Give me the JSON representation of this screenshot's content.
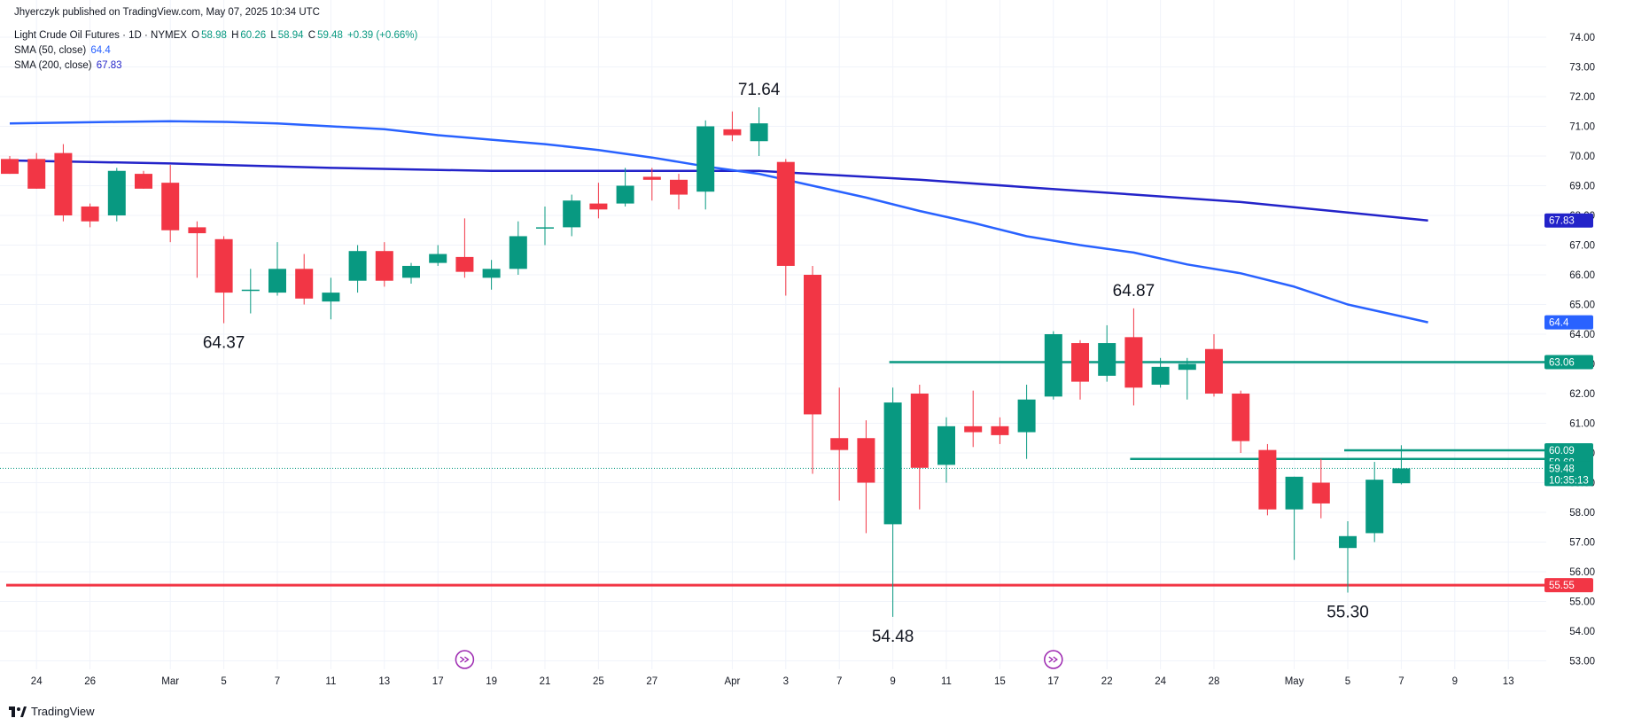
{
  "header": {
    "publisher": "Jhyerczyk published on TradingView.com, May 07, 2025 10:34 UTC",
    "symbol": "Light Crude Oil Futures · 1D · NYMEX",
    "open_label": "O",
    "open": "58.98",
    "high_label": "H",
    "high": "60.26",
    "low_label": "L",
    "low": "58.94",
    "close_label": "C",
    "close": "59.48",
    "change": "+0.39 (+0.66%)",
    "sma50_label": "SMA (50, close)",
    "sma50_value": "64.4",
    "sma200_label": "SMA (200, close)",
    "sma200_value": "67.83"
  },
  "footer": {
    "brand": "TradingView",
    "logo_icon": "tradingview-logo-icon"
  },
  "colors": {
    "up": "#089981",
    "down": "#f23645",
    "sma50": "#2962ff",
    "sma200": "#2323c9",
    "level_line": "#089981",
    "support_line": "#f23645",
    "grid": "#f0f3fa",
    "text": "#131722"
  },
  "chart_data": {
    "type": "candlestick",
    "title": "Light Crude Oil Futures · 1D · NYMEX",
    "ylim": [
      52.5,
      74.5
    ],
    "y_ticks": [
      "74.00",
      "73.00",
      "72.00",
      "71.00",
      "70.00",
      "69.00",
      "68.00",
      "67.00",
      "66.00",
      "65.00",
      "64.00",
      "63.00",
      "62.00",
      "61.00",
      "60.00",
      "59.00",
      "58.00",
      "57.00",
      "56.00",
      "55.00",
      "54.00",
      "53.00"
    ],
    "x_labels": [
      "24",
      "26",
      "Mar",
      "5",
      "7",
      "11",
      "13",
      "17",
      "19",
      "21",
      "25",
      "27",
      "Apr",
      "3",
      "7",
      "9",
      "11",
      "15",
      "17",
      "22",
      "24",
      "28",
      "May",
      "5",
      "7",
      "9",
      "13"
    ],
    "x_label_slots": [
      1,
      3,
      6,
      8,
      10,
      12,
      14,
      16,
      18,
      20,
      22,
      24,
      27,
      29,
      31,
      33,
      35,
      37,
      39,
      41,
      43,
      45,
      48,
      50,
      52,
      54,
      56
    ],
    "candles": [
      {
        "o": 69.9,
        "h": 70.0,
        "l": 69.4,
        "c": 69.4
      },
      {
        "o": 69.9,
        "h": 70.1,
        "l": 68.9,
        "c": 68.9
      },
      {
        "o": 70.1,
        "h": 70.4,
        "l": 67.8,
        "c": 68.0
      },
      {
        "o": 68.3,
        "h": 68.4,
        "l": 67.6,
        "c": 67.8
      },
      {
        "o": 68.0,
        "h": 69.6,
        "l": 67.8,
        "c": 69.5
      },
      {
        "o": 69.4,
        "h": 69.5,
        "l": 68.9,
        "c": 68.9
      },
      {
        "o": 69.1,
        "h": 69.7,
        "l": 67.1,
        "c": 67.5
      },
      {
        "o": 67.6,
        "h": 67.8,
        "l": 65.9,
        "c": 67.4
      },
      {
        "o": 67.2,
        "h": 67.3,
        "l": 64.37,
        "c": 65.4
      },
      {
        "o": 65.5,
        "h": 66.2,
        "l": 64.7,
        "c": 65.5
      },
      {
        "o": 65.4,
        "h": 67.1,
        "l": 65.3,
        "c": 66.2
      },
      {
        "o": 66.2,
        "h": 66.7,
        "l": 65.0,
        "c": 65.2
      },
      {
        "o": 65.1,
        "h": 65.9,
        "l": 64.5,
        "c": 65.4
      },
      {
        "o": 65.8,
        "h": 67.0,
        "l": 65.4,
        "c": 66.8
      },
      {
        "o": 66.8,
        "h": 67.1,
        "l": 65.6,
        "c": 65.8
      },
      {
        "o": 65.9,
        "h": 66.4,
        "l": 65.7,
        "c": 66.3
      },
      {
        "o": 66.4,
        "h": 67.0,
        "l": 66.3,
        "c": 66.7
      },
      {
        "o": 66.6,
        "h": 67.9,
        "l": 65.9,
        "c": 66.1
      },
      {
        "o": 65.9,
        "h": 66.5,
        "l": 65.5,
        "c": 66.2
      },
      {
        "o": 66.2,
        "h": 67.8,
        "l": 66.0,
        "c": 67.3
      },
      {
        "o": 67.6,
        "h": 68.3,
        "l": 67.0,
        "c": 67.6
      },
      {
        "o": 67.6,
        "h": 68.7,
        "l": 67.3,
        "c": 68.5
      },
      {
        "o": 68.4,
        "h": 69.1,
        "l": 67.9,
        "c": 68.2
      },
      {
        "o": 68.4,
        "h": 69.6,
        "l": 68.3,
        "c": 69.0
      },
      {
        "o": 69.3,
        "h": 69.6,
        "l": 68.5,
        "c": 69.2
      },
      {
        "o": 69.2,
        "h": 69.4,
        "l": 68.2,
        "c": 68.7
      },
      {
        "o": 68.8,
        "h": 71.2,
        "l": 68.2,
        "c": 71.0
      },
      {
        "o": 70.9,
        "h": 71.5,
        "l": 70.5,
        "c": 70.7
      },
      {
        "o": 70.5,
        "h": 71.64,
        "l": 70.0,
        "c": 71.1
      },
      {
        "o": 69.8,
        "h": 69.9,
        "l": 65.3,
        "c": 66.3
      },
      {
        "o": 66.0,
        "h": 66.3,
        "l": 59.3,
        "c": 61.3
      },
      {
        "o": 60.5,
        "h": 62.2,
        "l": 58.4,
        "c": 60.1
      },
      {
        "o": 60.5,
        "h": 61.1,
        "l": 57.3,
        "c": 59.0
      },
      {
        "o": 57.6,
        "h": 62.2,
        "l": 54.48,
        "c": 61.7
      },
      {
        "o": 62.0,
        "h": 62.3,
        "l": 58.1,
        "c": 59.5
      },
      {
        "o": 59.6,
        "h": 61.2,
        "l": 59.0,
        "c": 60.9
      },
      {
        "o": 60.9,
        "h": 62.1,
        "l": 60.2,
        "c": 60.7
      },
      {
        "o": 60.9,
        "h": 61.2,
        "l": 60.3,
        "c": 60.6
      },
      {
        "o": 60.7,
        "h": 62.3,
        "l": 59.8,
        "c": 61.8
      },
      {
        "o": 61.9,
        "h": 64.1,
        "l": 61.8,
        "c": 64.0
      },
      {
        "o": 63.7,
        "h": 63.8,
        "l": 61.8,
        "c": 62.4
      },
      {
        "o": 62.6,
        "h": 64.3,
        "l": 62.4,
        "c": 63.7
      },
      {
        "o": 63.9,
        "h": 64.87,
        "l": 61.6,
        "c": 62.2
      },
      {
        "o": 62.3,
        "h": 63.2,
        "l": 62.2,
        "c": 62.9
      },
      {
        "o": 62.8,
        "h": 63.2,
        "l": 61.8,
        "c": 63.0
      },
      {
        "o": 63.5,
        "h": 64.0,
        "l": 61.9,
        "c": 62.0
      },
      {
        "o": 62.0,
        "h": 62.1,
        "l": 60.0,
        "c": 60.4
      },
      {
        "o": 60.1,
        "h": 60.3,
        "l": 57.9,
        "c": 58.1
      },
      {
        "o": 58.1,
        "h": 59.2,
        "l": 56.4,
        "c": 59.2
      },
      {
        "o": 59.0,
        "h": 59.8,
        "l": 57.8,
        "c": 58.3
      },
      {
        "o": 56.8,
        "h": 57.7,
        "l": 55.3,
        "c": 57.2
      },
      {
        "o": 57.3,
        "h": 59.7,
        "l": 57.0,
        "c": 59.1
      },
      {
        "o": 58.98,
        "h": 60.26,
        "l": 58.94,
        "c": 59.48
      }
    ],
    "sma50": [
      {
        "slot": 0,
        "v": 71.1
      },
      {
        "slot": 4,
        "v": 71.15
      },
      {
        "slot": 6,
        "v": 71.17
      },
      {
        "slot": 8,
        "v": 71.15
      },
      {
        "slot": 10,
        "v": 71.1
      },
      {
        "slot": 12,
        "v": 71.0
      },
      {
        "slot": 14,
        "v": 70.9
      },
      {
        "slot": 16,
        "v": 70.7
      },
      {
        "slot": 18,
        "v": 70.55
      },
      {
        "slot": 20,
        "v": 70.4
      },
      {
        "slot": 22,
        "v": 70.2
      },
      {
        "slot": 24,
        "v": 69.95
      },
      {
        "slot": 26,
        "v": 69.65
      },
      {
        "slot": 28,
        "v": 69.4
      },
      {
        "slot": 30,
        "v": 69.0
      },
      {
        "slot": 32,
        "v": 68.6
      },
      {
        "slot": 34,
        "v": 68.15
      },
      {
        "slot": 36,
        "v": 67.75
      },
      {
        "slot": 38,
        "v": 67.3
      },
      {
        "slot": 40,
        "v": 67.0
      },
      {
        "slot": 42,
        "v": 66.75
      },
      {
        "slot": 44,
        "v": 66.35
      },
      {
        "slot": 46,
        "v": 66.05
      },
      {
        "slot": 48,
        "v": 65.6
      },
      {
        "slot": 50,
        "v": 65.0
      },
      {
        "slot": 52,
        "v": 64.6
      },
      {
        "slot": 53,
        "v": 64.4
      }
    ],
    "sma200": [
      {
        "slot": 0,
        "v": 69.85
      },
      {
        "slot": 6,
        "v": 69.75
      },
      {
        "slot": 12,
        "v": 69.6
      },
      {
        "slot": 18,
        "v": 69.5
      },
      {
        "slot": 24,
        "v": 69.5
      },
      {
        "slot": 28,
        "v": 69.5
      },
      {
        "slot": 30,
        "v": 69.4
      },
      {
        "slot": 34,
        "v": 69.2
      },
      {
        "slot": 38,
        "v": 68.95
      },
      {
        "slot": 42,
        "v": 68.7
      },
      {
        "slot": 46,
        "v": 68.45
      },
      {
        "slot": 50,
        "v": 68.1
      },
      {
        "slot": 53,
        "v": 67.83
      }
    ],
    "horizontal_levels": [
      {
        "value": 63.06,
        "start_slot": 33,
        "label": "63.06",
        "color": "#089981"
      },
      {
        "value": 59.8,
        "start_slot": 42,
        "label": "",
        "color": "#089981"
      },
      {
        "value": 60.09,
        "start_slot": 50,
        "label": "",
        "color": "#089981"
      },
      {
        "value": 55.55,
        "start_slot": 0,
        "label": "55.55",
        "color": "#f23645"
      }
    ],
    "annotations": [
      {
        "slot": 8,
        "value": 64.37,
        "text": "64.37",
        "pos": "below"
      },
      {
        "slot": 28,
        "value": 71.64,
        "text": "71.64",
        "pos": "above"
      },
      {
        "slot": 33,
        "value": 54.48,
        "text": "54.48",
        "pos": "below"
      },
      {
        "slot": 42,
        "value": 64.87,
        "text": "64.87",
        "pos": "above"
      },
      {
        "slot": 50,
        "value": 55.3,
        "text": "55.30",
        "pos": "below"
      }
    ],
    "price_tags": [
      {
        "value": 67.83,
        "text": "67.83",
        "bg": "#2323c9",
        "fg": "#ffffff"
      },
      {
        "value": 64.4,
        "text": "64.4",
        "bg": "#2962ff",
        "fg": "#ffffff"
      },
      {
        "value": 63.06,
        "text": "63.06",
        "bg": "#089981",
        "fg": "#ffffff"
      },
      {
        "value": 60.09,
        "text": "60.09",
        "bg": "#089981",
        "fg": "#ffffff"
      },
      {
        "value": 59.68,
        "text": "59.68",
        "bg": "#089981",
        "fg": "#ffffff"
      },
      {
        "value": 59.48,
        "text": "59.48",
        "sub": "10:35:13",
        "bg": "#089981",
        "fg": "#ffffff"
      },
      {
        "value": 55.55,
        "text": "55.55",
        "bg": "#f23645",
        "fg": "#ffffff"
      }
    ],
    "last_price": 59.48,
    "event_markers": [
      {
        "slot": 17,
        "icon": "dividend-arrow-icon"
      },
      {
        "slot": 39,
        "icon": "dividend-arrow-icon"
      }
    ]
  }
}
